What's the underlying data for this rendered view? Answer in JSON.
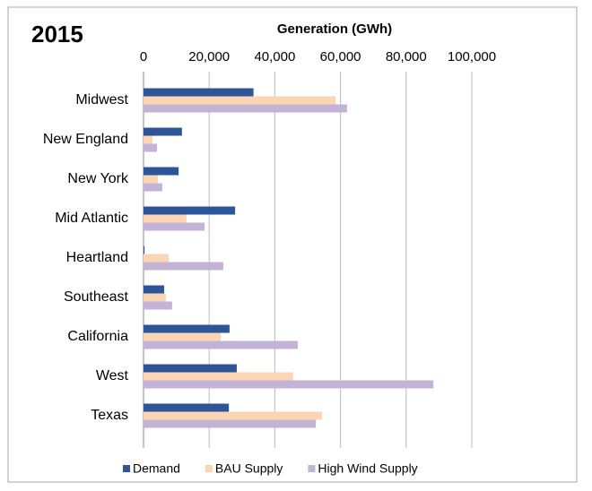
{
  "chart_data": {
    "type": "hbar",
    "title": "2015",
    "x_label": "Generation (GWh)",
    "categories": [
      "Midwest",
      "New England",
      "New York",
      "Mid Atlantic",
      "Heartland",
      "Southeast",
      "California",
      "West",
      "Texas"
    ],
    "series": [
      {
        "name": "Demand",
        "color": "#2e5597",
        "values": [
          33500,
          11700,
          10700,
          27900,
          300,
          6300,
          26200,
          28400,
          26000
        ]
      },
      {
        "name": "BAU Supply",
        "color": "#fcd5b5",
        "values": [
          58500,
          2700,
          4400,
          13100,
          7700,
          6800,
          23500,
          45600,
          54400
        ]
      },
      {
        "name": "High Wind Supply",
        "color": "#c3b3d6",
        "values": [
          62000,
          4100,
          5700,
          18600,
          24300,
          8700,
          47000,
          88300,
          52500
        ]
      }
    ],
    "xlim": [
      0,
      100000
    ],
    "xticks": [
      0,
      {
        "value": 20000,
        "label": "20,000"
      },
      {
        "value": 40000,
        "label": "40,000"
      },
      {
        "value": 60000,
        "label": "60,000"
      },
      {
        "value": 80000,
        "label": "80,000"
      },
      {
        "value": 100000,
        "label": "100,000"
      }
    ],
    "grid": true,
    "legend": "bottom"
  }
}
